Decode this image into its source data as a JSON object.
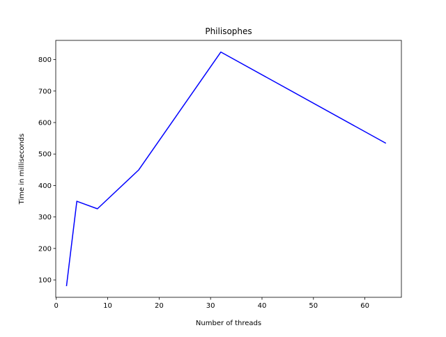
{
  "chart_data": {
    "type": "line",
    "title": "Philisophes",
    "xlabel": "Number of threads",
    "ylabel": "Time in milliseconds",
    "xlim": [
      -0.1,
      67.1
    ],
    "ylim": [
      44.8,
      861.0
    ],
    "xticks": [
      0,
      10,
      20,
      30,
      40,
      50,
      60
    ],
    "yticks": [
      100,
      200,
      300,
      400,
      500,
      600,
      700,
      800
    ],
    "grid": false,
    "series": [
      {
        "color": "#0000ff",
        "x": [
          2,
          4,
          8,
          16,
          32,
          64
        ],
        "y": [
          82,
          350,
          326,
          449,
          824,
          535
        ]
      }
    ]
  }
}
